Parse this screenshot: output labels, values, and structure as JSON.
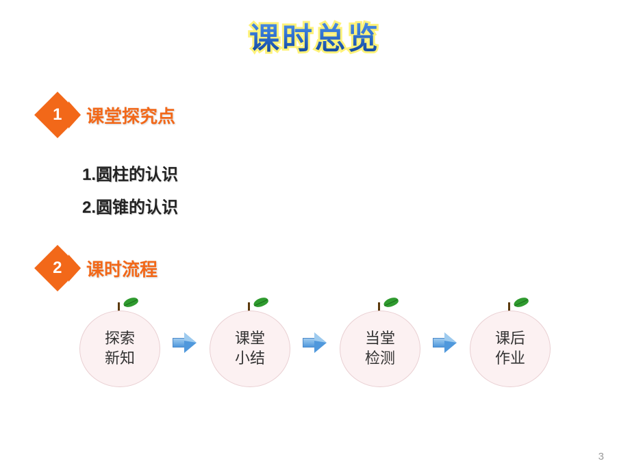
{
  "title": "课时总览",
  "title_style": {
    "font_size": 44,
    "gradient_colors": [
      "#5b9de8",
      "#3476d6",
      "#0a3d8f"
    ],
    "outline_color": "#fff27a"
  },
  "sections": [
    {
      "number": "1",
      "label": "课堂探究点",
      "badge_color": "#f26819",
      "label_color": "#f26819",
      "label_fontsize": 26,
      "items": [
        "1.圆柱的认识",
        "2.圆锥的认识"
      ],
      "item_fontsize": 24,
      "item_color": "#222222"
    },
    {
      "number": "2",
      "label": "课时流程",
      "badge_color": "#f26819",
      "label_color": "#f26819",
      "label_fontsize": 26
    }
  ],
  "flow": {
    "type": "flowchart",
    "node_shape": "fruit-circle",
    "node_bg": "#fcf1f2",
    "node_border": "#e9cfd2",
    "stem_color": "#5c3a0d",
    "leaf_color": "#2f9b2f",
    "arrow_colors": [
      "#9ecbef",
      "#4f98dc"
    ],
    "arrow_border": "#4a88c9",
    "label_fontsize": 22,
    "label_color": "#333333",
    "nodes": [
      {
        "label_line1": "探索",
        "label_line2": "新知"
      },
      {
        "label_line1": "课堂",
        "label_line2": "小结"
      },
      {
        "label_line1": "当堂",
        "label_line2": "检测"
      },
      {
        "label_line1": "课后",
        "label_line2": "作业"
      }
    ]
  },
  "page_number": "3",
  "background_color": "#ffffff"
}
